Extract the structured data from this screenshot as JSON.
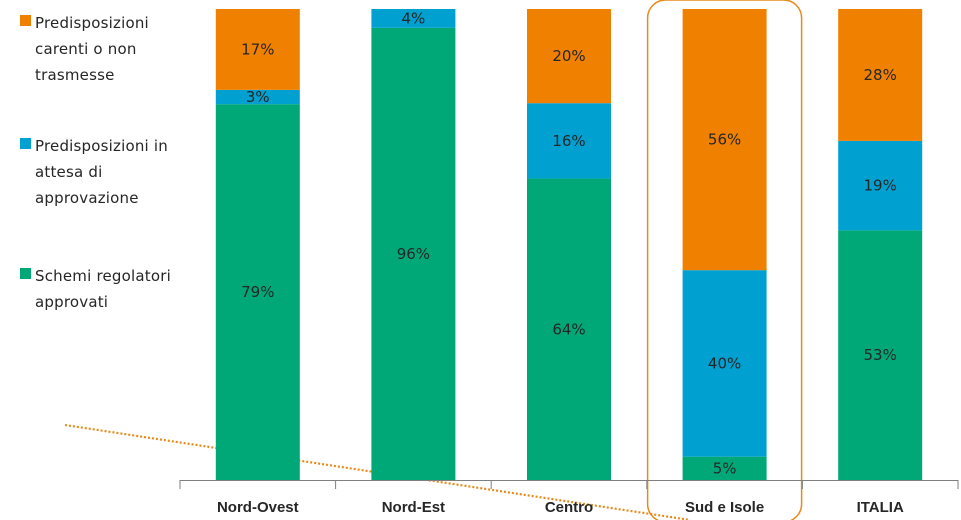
{
  "chart_data": {
    "type": "bar",
    "stacked": true,
    "categories": [
      "Nord-Ovest",
      "Nord-Est",
      "Centro",
      "Sud e Isole",
      "ITALIA"
    ],
    "series": [
      {
        "name": "Schemi regolatori approvati",
        "color": "#00A878",
        "values": [
          79,
          96,
          64,
          5,
          53
        ]
      },
      {
        "name": "Predisposizioni in attesa di approvazione",
        "color": "#00A0D0",
        "values": [
          3,
          4,
          16,
          40,
          19
        ]
      },
      {
        "name": "Predisposizioni carenti o non trasmesse",
        "color": "#F08000",
        "values": [
          17,
          0,
          20,
          56,
          28
        ]
      }
    ],
    "data_labels": [
      [
        "79%",
        "96%",
        "64%",
        "5%",
        "53%"
      ],
      [
        "3%",
        "4%",
        "16%",
        "40%",
        "19%"
      ],
      [
        "17%",
        "",
        "20%",
        "56%",
        "28%"
      ]
    ],
    "ylim": [
      0,
      100
    ],
    "highlighted_category": "Sud e Isole",
    "highlight_color": "#E88A1A",
    "legend_position": "left",
    "grid": false
  },
  "legend": [
    {
      "label": "Predisposizioni carenti o non trasmesse",
      "color": "#F08000"
    },
    {
      "label": "Predisposizioni in attesa di approvazione",
      "color": "#00A0D0"
    },
    {
      "label": "Schemi regolatori approvati",
      "color": "#00A878"
    }
  ]
}
